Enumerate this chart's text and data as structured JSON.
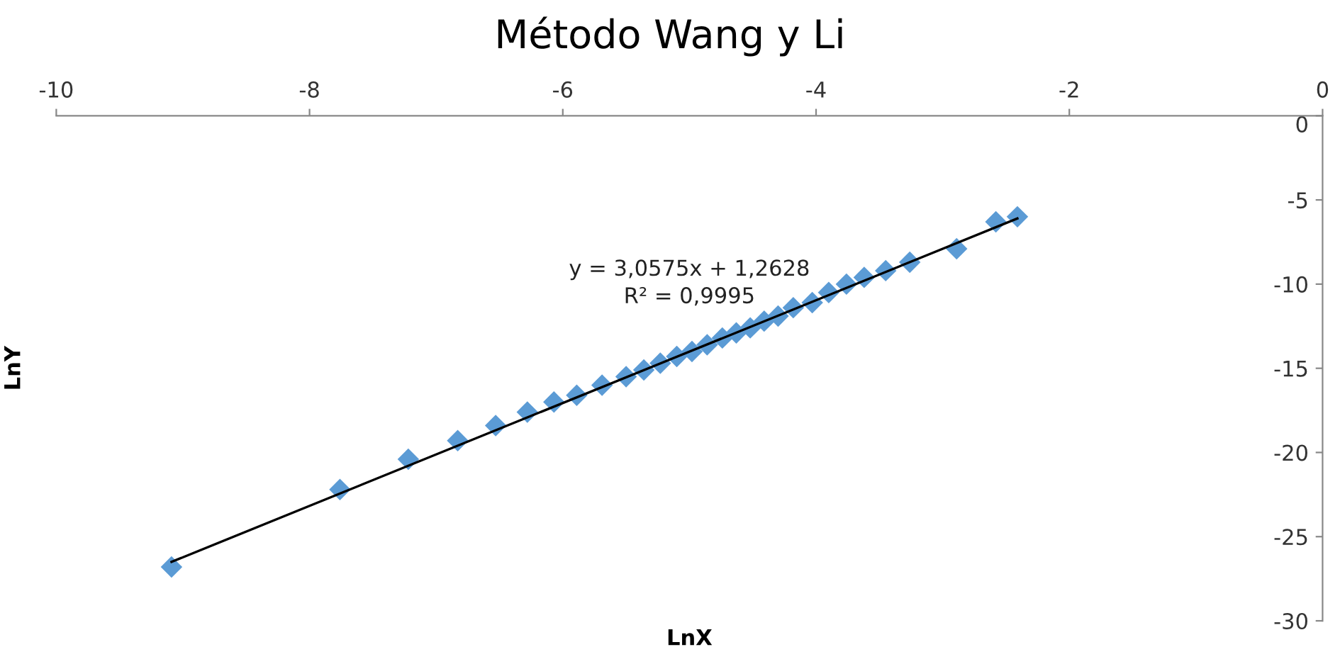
{
  "chart_data": {
    "type": "scatter",
    "title": "Método Wang y Li",
    "xlabel": "LnX",
    "ylabel": "LnY",
    "xlim": [
      -10,
      0
    ],
    "xticks": [
      -10,
      -8,
      -6,
      -4,
      -2,
      0
    ],
    "ylim": [
      -30,
      0
    ],
    "yticks": [
      -30,
      -25,
      -20,
      -15,
      -10,
      -5,
      0
    ],
    "grid": false,
    "legend": false,
    "series": [
      {
        "marker": "diamond",
        "color": "#5b9bd5",
        "x": [
          -9.09,
          -7.76,
          -7.22,
          -6.83,
          -6.53,
          -6.28,
          -6.07,
          -5.89,
          -5.69,
          -5.5,
          -5.36,
          -5.23,
          -5.1,
          -4.98,
          -4.86,
          -4.74,
          -4.63,
          -4.52,
          -4.41,
          -4.3,
          -4.18,
          -4.03,
          -3.9,
          -3.76,
          -3.62,
          -3.45,
          -3.26,
          -2.89,
          -2.58,
          -2.41
        ],
        "values": [
          -26.8,
          -22.2,
          -20.4,
          -19.3,
          -18.4,
          -17.6,
          -17.0,
          -16.6,
          -16.0,
          -15.5,
          -15.1,
          -14.7,
          -14.3,
          -14.0,
          -13.6,
          -13.2,
          -12.9,
          -12.6,
          -12.2,
          -11.9,
          -11.4,
          -11.1,
          -10.5,
          -10.0,
          -9.6,
          -9.2,
          -8.7,
          -7.9,
          -6.3,
          -6.0
        ]
      },
      {
        "type": "line",
        "marker": "none",
        "color": "#000000",
        "x": [
          -9.09,
          -2.41
        ],
        "values": [
          -26.5,
          -6.1
        ]
      }
    ],
    "annotations": [
      "y = 3,0575x + 1,2628\nR² = 0,9995"
    ]
  }
}
